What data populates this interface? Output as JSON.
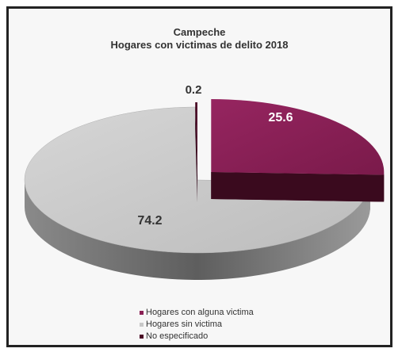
{
  "chart_data": {
    "type": "pie",
    "title": "Campeche",
    "subtitle": "Hogares con victimas  de delito 2018",
    "series": [
      {
        "label": "Hogares con alguna victima",
        "value": 25.6,
        "display": "25.6",
        "color": "#8b2155"
      },
      {
        "label": "Hogares sin victima",
        "value": 74.2,
        "display": "74.2",
        "color": "#c8c8c8"
      },
      {
        "label": "No especificado",
        "value": 0.2,
        "display": "0.2",
        "color": "#4a0a25"
      }
    ],
    "legend_position": "bottom",
    "style": "3d-exploded"
  }
}
